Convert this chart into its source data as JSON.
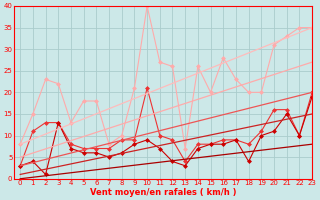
{
  "xlabel": "Vent moyen/en rafales ( km/h )",
  "bg_color": "#cce8e8",
  "grid_color": "#aacccc",
  "xlim": [
    -0.5,
    23
  ],
  "ylim": [
    0,
    40
  ],
  "yticks": [
    0,
    5,
    10,
    15,
    20,
    25,
    30,
    35,
    40
  ],
  "xticks": [
    0,
    1,
    2,
    3,
    4,
    5,
    6,
    7,
    8,
    9,
    10,
    11,
    12,
    13,
    14,
    15,
    16,
    17,
    18,
    19,
    20,
    21,
    22,
    23
  ],
  "series": [
    {
      "x": [
        0,
        1,
        2,
        3,
        4,
        5,
        6,
        7,
        8,
        9,
        10,
        11,
        12,
        13,
        14,
        15,
        16,
        17,
        18,
        19,
        20,
        21,
        22,
        23
      ],
      "y": [
        8,
        15,
        23,
        22,
        13,
        18,
        18,
        8,
        10,
        21,
        40,
        27,
        26,
        7,
        26,
        20,
        28,
        23,
        20,
        20,
        31,
        33,
        35,
        35
      ],
      "color": "#ffaaaa",
      "lw": 0.8,
      "ms": 2.5,
      "marker": "D"
    },
    {
      "x": [
        0,
        1,
        2,
        3,
        4,
        5,
        6,
        7,
        8,
        9,
        10,
        11,
        12,
        13,
        14,
        15,
        16,
        17,
        18,
        19,
        20,
        21,
        22,
        23
      ],
      "y": [
        3,
        11,
        13,
        13,
        8,
        7,
        7,
        7,
        9,
        9,
        21,
        10,
        9,
        4,
        8,
        8,
        9,
        9,
        8,
        11,
        16,
        16,
        10,
        20
      ],
      "color": "#ee3333",
      "lw": 0.8,
      "ms": 2.5,
      "marker": "D"
    },
    {
      "x": [
        0,
        1,
        2,
        3,
        4,
        5,
        6,
        7,
        8,
        9,
        10,
        11,
        12,
        13,
        14,
        15,
        16,
        17,
        18,
        19,
        20,
        21,
        22,
        23
      ],
      "y": [
        3,
        4,
        1,
        13,
        7,
        6,
        6,
        5,
        6,
        8,
        9,
        7,
        4,
        3,
        7,
        8,
        8,
        9,
        4,
        10,
        11,
        15,
        10,
        19
      ],
      "color": "#cc0000",
      "lw": 0.8,
      "ms": 2.5,
      "marker": "D"
    },
    {
      "x": [
        0,
        23
      ],
      "y": [
        8,
        35
      ],
      "color": "#ffbbbb",
      "lw": 0.9,
      "ms": 0,
      "marker": null,
      "linestyle": "-"
    },
    {
      "x": [
        0,
        23
      ],
      "y": [
        5,
        27
      ],
      "color": "#ffaaaa",
      "lw": 0.9,
      "ms": 0,
      "marker": null,
      "linestyle": "-"
    },
    {
      "x": [
        0,
        23
      ],
      "y": [
        3,
        20
      ],
      "color": "#ee5555",
      "lw": 0.9,
      "ms": 0,
      "marker": null,
      "linestyle": "-"
    },
    {
      "x": [
        0,
        23
      ],
      "y": [
        1,
        15
      ],
      "color": "#cc2222",
      "lw": 0.9,
      "ms": 0,
      "marker": null,
      "linestyle": "-"
    },
    {
      "x": [
        0,
        23
      ],
      "y": [
        0,
        8
      ],
      "color": "#aa0000",
      "lw": 0.9,
      "ms": 0,
      "marker": null,
      "linestyle": "-"
    }
  ]
}
